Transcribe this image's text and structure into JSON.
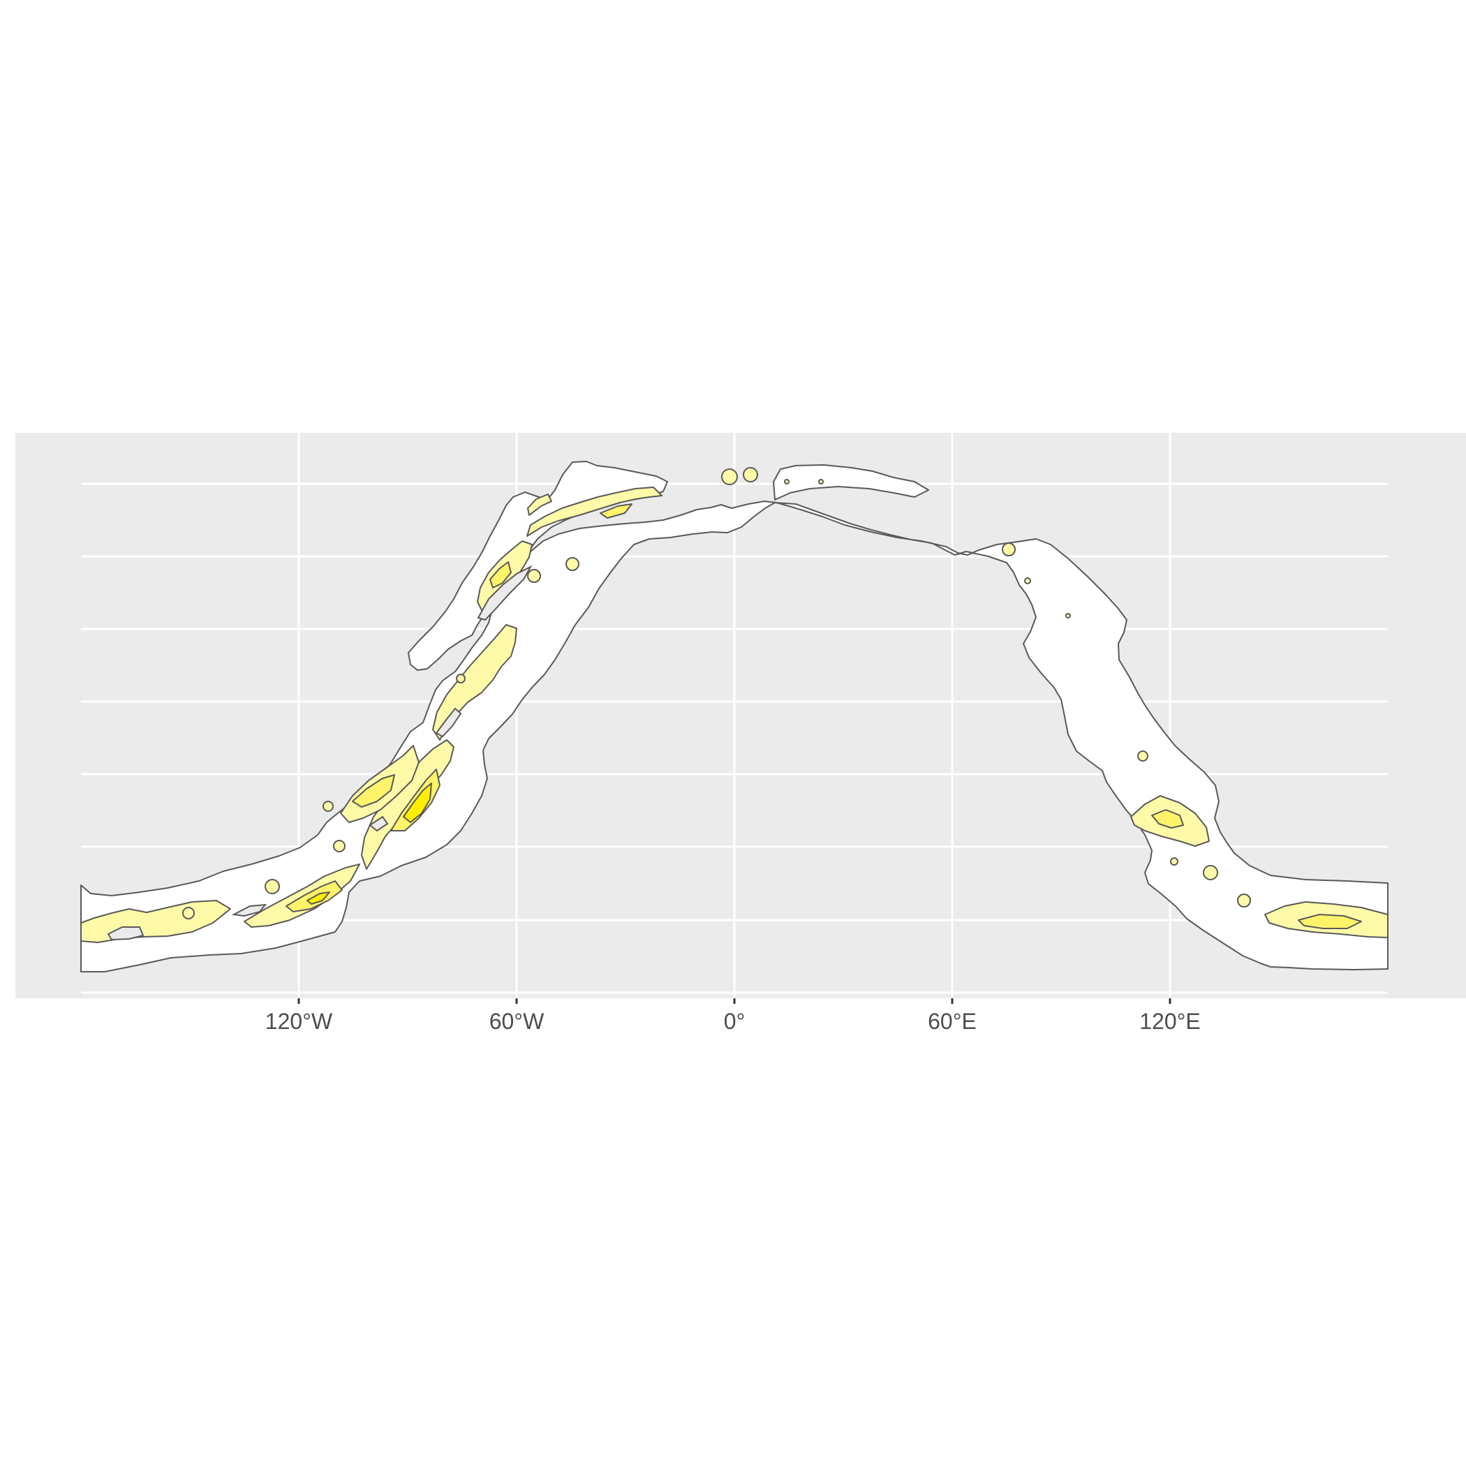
{
  "map": {
    "type": "filled-contour-map",
    "x_axis": {
      "tick_labels": [
        "120°W",
        "60°W",
        "0°",
        "60°E",
        "120°E"
      ],
      "tick_values": [
        -120,
        -60,
        0,
        60,
        120
      ]
    },
    "colors": {
      "panel_background": "#ebebeb",
      "gridline": "#ffffff",
      "outline": "#595959",
      "fill_level_1": "#ffffff",
      "fill_level_2": "#fffaa8",
      "fill_level_3": "#fff36a",
      "fill_level_4": "#ffee00"
    }
  }
}
